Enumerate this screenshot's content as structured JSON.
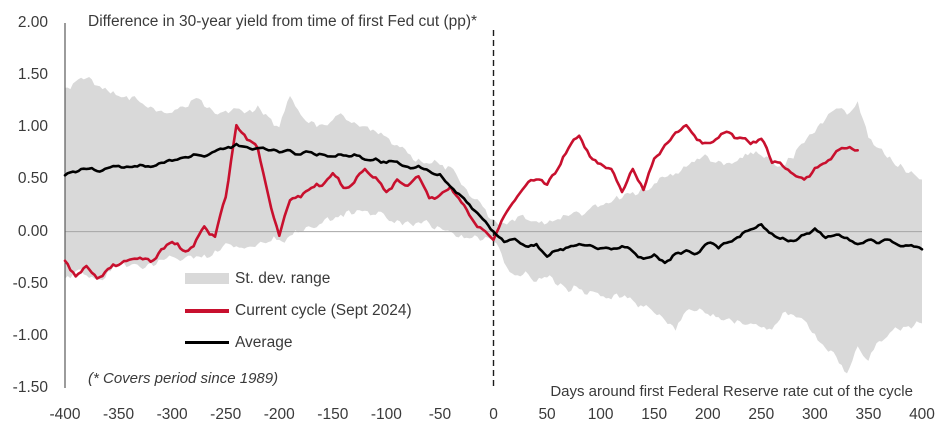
{
  "title": "Difference in 30-year yield from time of first Fed cut (pp)*",
  "footnote": "(* Covers period since 1989)",
  "x_axis_label": "Days around first Federal Reserve rate cut of the cycle",
  "legend": {
    "band": "St. dev. range",
    "current": "Current cycle (Sept 2024)",
    "average": "Average"
  },
  "colors": {
    "band": "#d9d9d9",
    "current": "#c8102e",
    "average": "#000000",
    "zero_line": "#a6a6a6",
    "axis_line": "#595959",
    "event_line": "#1a1a1a",
    "text": "#3a3a3a"
  },
  "chart_data": {
    "type": "line",
    "title": "Difference in 30-year yield from time of first Fed cut (pp)*",
    "xlabel": "Days around first Federal Reserve rate cut of the cycle",
    "ylabel": "",
    "xlim": [
      -400,
      400
    ],
    "ylim": [
      -1.5,
      2.0
    ],
    "x_ticks": [
      -400,
      -350,
      -300,
      -250,
      -200,
      -150,
      -100,
      -50,
      0,
      50,
      100,
      150,
      200,
      250,
      300,
      350,
      400
    ],
    "y_ticks": [
      2.0,
      1.5,
      1.0,
      0.5,
      0.0,
      -0.5,
      -1.0,
      -1.5
    ],
    "grid": "zero-line-only",
    "event_line_x": 0,
    "legend_position": "inside-lower-left",
    "x": {
      "start": -400,
      "step": 10,
      "unit": "days"
    },
    "series": [
      {
        "name": "St. dev. range",
        "type": "band",
        "upper": [
          1.38,
          1.44,
          1.47,
          1.4,
          1.35,
          1.3,
          1.26,
          1.24,
          1.2,
          1.16,
          1.14,
          1.2,
          1.27,
          1.2,
          1.13,
          1.16,
          1.18,
          1.15,
          1.21,
          1.1,
          1.0,
          1.3,
          1.12,
          1.06,
          1.03,
          1.07,
          1.11,
          1.05,
          1.01,
          0.96,
          0.91,
          0.83,
          0.75,
          0.7,
          0.65,
          0.64,
          0.62,
          0.45,
          0.32,
          0.24,
          0.12,
          0.08,
          0.1,
          0.12,
          0.1,
          0.08,
          0.12,
          0.15,
          0.18,
          0.22,
          0.25,
          0.28,
          0.32,
          0.38,
          0.42,
          0.46,
          0.52,
          0.56,
          0.62,
          0.7,
          0.72,
          0.68,
          0.66,
          0.71,
          0.76,
          0.73,
          0.7,
          0.62,
          0.7,
          0.85,
          0.95,
          1.08,
          1.18,
          1.12,
          1.25,
          0.9,
          0.8,
          0.72,
          0.65,
          0.58,
          0.5
        ],
        "lower": [
          -0.45,
          -0.38,
          -0.42,
          -0.46,
          -0.38,
          -0.3,
          -0.33,
          -0.34,
          -0.3,
          -0.27,
          -0.24,
          -0.27,
          -0.26,
          -0.22,
          -0.18,
          -0.11,
          -0.14,
          -0.15,
          -0.12,
          -0.1,
          -0.08,
          -0.04,
          0.0,
          0.04,
          0.08,
          0.11,
          0.14,
          0.17,
          0.2,
          0.16,
          0.13,
          0.11,
          0.1,
          0.09,
          0.08,
          0.04,
          0.0,
          -0.03,
          -0.06,
          -0.08,
          -0.1,
          -0.3,
          -0.42,
          -0.38,
          -0.48,
          -0.44,
          -0.52,
          -0.58,
          -0.55,
          -0.57,
          -0.62,
          -0.65,
          -0.63,
          -0.66,
          -0.72,
          -0.78,
          -0.85,
          -0.95,
          -0.76,
          -0.76,
          -0.79,
          -0.82,
          -0.83,
          -0.86,
          -0.88,
          -0.92,
          -0.94,
          -0.78,
          -0.8,
          -0.85,
          -0.98,
          -1.12,
          -1.2,
          -1.36,
          -1.1,
          -1.24,
          -1.05,
          -0.97,
          -0.95,
          -0.93,
          -0.88
        ]
      },
      {
        "name": "Current cycle (Sept 2024)",
        "type": "line",
        "x_end": 340,
        "values": [
          -0.28,
          -0.43,
          -0.33,
          -0.45,
          -0.36,
          -0.32,
          -0.27,
          -0.25,
          -0.29,
          -0.17,
          -0.1,
          -0.18,
          -0.14,
          0.05,
          -0.05,
          0.33,
          1.02,
          0.88,
          0.8,
          0.34,
          -0.04,
          0.3,
          0.33,
          0.42,
          0.44,
          0.56,
          0.42,
          0.47,
          0.6,
          0.52,
          0.38,
          0.5,
          0.44,
          0.53,
          0.32,
          0.35,
          0.43,
          0.28,
          0.12,
          0.02,
          -0.08,
          0.15,
          0.3,
          0.44,
          0.5,
          0.45,
          0.6,
          0.8,
          0.92,
          0.72,
          0.65,
          0.6,
          0.38,
          0.6,
          0.4,
          0.7,
          0.83,
          0.95,
          1.02,
          0.88,
          0.85,
          0.9,
          0.95,
          0.9,
          0.84,
          0.89,
          0.66,
          0.63,
          0.55,
          0.5,
          0.61,
          0.66,
          0.77,
          0.8,
          0.78
        ]
      },
      {
        "name": "Average",
        "type": "line",
        "x_end": 400,
        "values": [
          0.54,
          0.57,
          0.6,
          0.58,
          0.61,
          0.63,
          0.62,
          0.64,
          0.62,
          0.66,
          0.68,
          0.71,
          0.74,
          0.72,
          0.77,
          0.8,
          0.84,
          0.81,
          0.8,
          0.78,
          0.76,
          0.78,
          0.74,
          0.76,
          0.74,
          0.72,
          0.73,
          0.74,
          0.69,
          0.7,
          0.66,
          0.67,
          0.62,
          0.63,
          0.58,
          0.55,
          0.43,
          0.34,
          0.22,
          0.12,
          0.0,
          -0.1,
          -0.07,
          -0.14,
          -0.12,
          -0.24,
          -0.18,
          -0.15,
          -0.12,
          -0.13,
          -0.16,
          -0.17,
          -0.14,
          -0.19,
          -0.26,
          -0.22,
          -0.3,
          -0.21,
          -0.18,
          -0.21,
          -0.11,
          -0.16,
          -0.1,
          -0.05,
          0.02,
          0.07,
          -0.02,
          -0.06,
          -0.09,
          -0.03,
          0.03,
          -0.06,
          -0.03,
          -0.06,
          -0.12,
          -0.08,
          -0.11,
          -0.08,
          -0.14,
          -0.13,
          -0.17
        ]
      }
    ]
  }
}
